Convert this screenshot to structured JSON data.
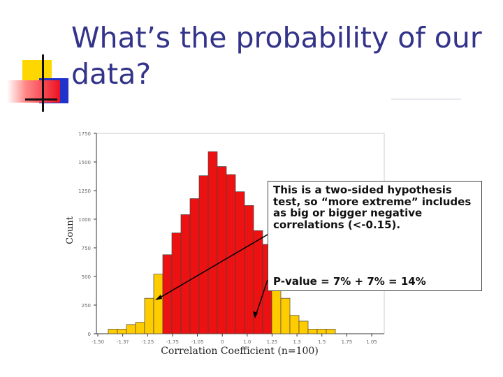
{
  "slide": {
    "title": "What’s the probability of our data?"
  },
  "callout": {
    "text": "This is a two-sided hypothesis test, so “more extreme” includes as big or bigger negative correlations  (<-0.15).",
    "pvalue": "P-value = 7% + 7% = 14%"
  },
  "colors": {
    "title": "#33338a",
    "tail_bars": "#ffcc00",
    "center_bars": "#ee1111",
    "deco_yellow": "#ffd700",
    "deco_red": "#ee1122",
    "deco_blue": "#2233cc"
  },
  "chart_data": {
    "type": "bar",
    "ylabel": "Count",
    "xlabel": "Correlation Coefficient (n=100)",
    "ylim": [
      0,
      1750
    ],
    "yticks": [
      "0",
      "250",
      "500",
      "750",
      "1000",
      "1250",
      "1500",
      "1750"
    ],
    "xticks": [
      "-1.50",
      "-1.3?",
      "-1.25",
      "-1.75",
      "-1.05",
      "0",
      "1.0",
      "1.25",
      "1.3",
      "1.5",
      "1.75",
      "1.05"
    ],
    "bin_width": 0.025,
    "x_start": -0.4,
    "values": [
      40,
      40,
      80,
      100,
      310,
      520,
      690,
      880,
      1040,
      1180,
      1380,
      1590,
      1460,
      1390,
      1240,
      1120,
      900,
      780,
      490,
      310,
      160,
      110,
      40,
      40,
      40
    ],
    "highlight": [
      0,
      0,
      0,
      0,
      0,
      0,
      1,
      1,
      1,
      1,
      1,
      1,
      1,
      1,
      1,
      1,
      1,
      1,
      0,
      0,
      0,
      0,
      0,
      0,
      0
    ]
  }
}
